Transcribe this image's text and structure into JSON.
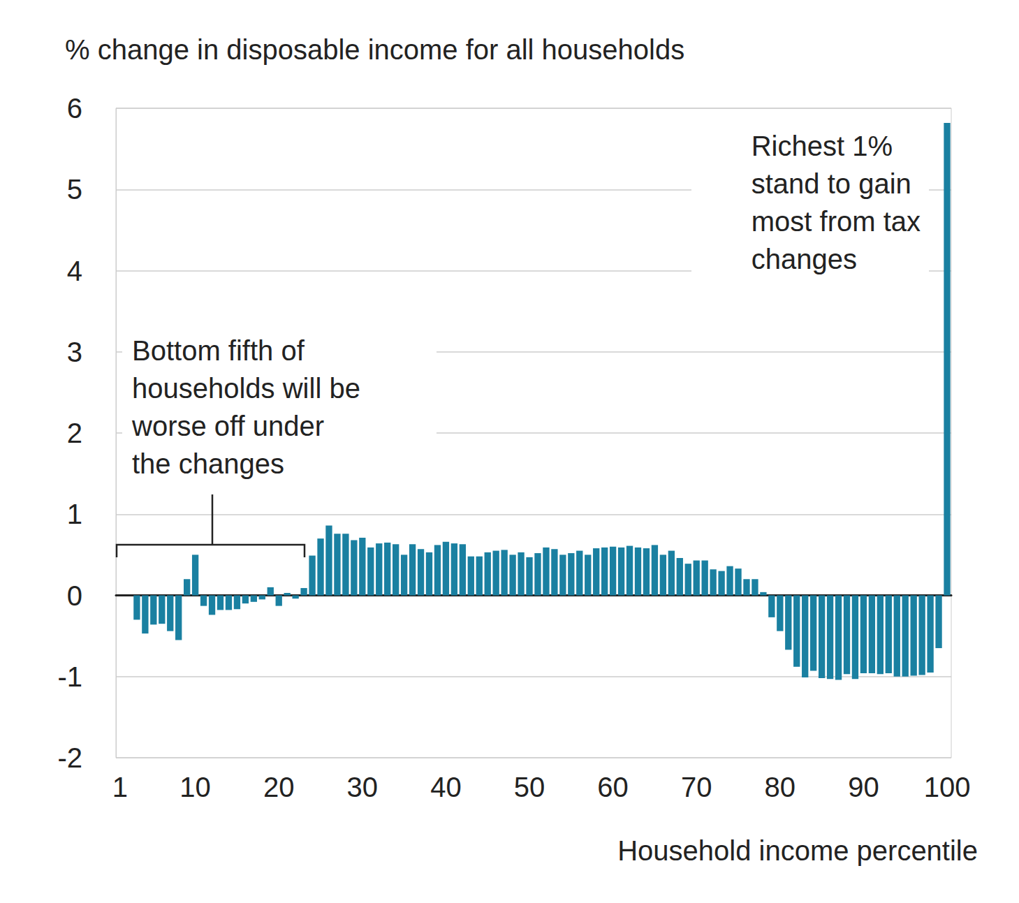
{
  "chart_data": {
    "type": "bar",
    "title": "% change in disposable income for all households",
    "x_label": "Household income percentile",
    "categories": [
      1,
      null,
      null,
      null,
      null,
      null,
      null,
      null,
      null,
      10,
      null,
      null,
      null,
      null,
      null,
      null,
      null,
      null,
      null,
      20,
      null,
      null,
      null,
      null,
      null,
      null,
      null,
      null,
      null,
      30,
      null,
      null,
      null,
      null,
      null,
      null,
      null,
      null,
      null,
      40,
      null,
      null,
      null,
      null,
      null,
      null,
      null,
      null,
      null,
      50,
      null,
      null,
      null,
      null,
      null,
      null,
      null,
      null,
      null,
      60,
      null,
      null,
      null,
      null,
      null,
      null,
      null,
      null,
      null,
      70,
      null,
      null,
      null,
      null,
      null,
      null,
      null,
      null,
      null,
      80,
      null,
      null,
      null,
      null,
      null,
      null,
      null,
      null,
      null,
      90,
      null,
      null,
      null,
      null,
      null,
      null,
      null,
      null,
      null,
      100
    ],
    "values": [
      0,
      0,
      -0.3,
      -0.47,
      -0.36,
      -0.35,
      -0.44,
      -0.55,
      0.2,
      0.5,
      -0.13,
      -0.24,
      -0.18,
      -0.18,
      -0.17,
      -0.1,
      -0.08,
      -0.05,
      0.1,
      -0.13,
      0.03,
      -0.04,
      0.09,
      0.49,
      0.7,
      0.86,
      0.76,
      0.76,
      0.68,
      0.71,
      0.59,
      0.64,
      0.65,
      0.63,
      0.5,
      0.63,
      0.57,
      0.53,
      0.62,
      0.66,
      0.64,
      0.63,
      0.48,
      0.48,
      0.53,
      0.55,
      0.56,
      0.5,
      0.53,
      0.47,
      0.52,
      0.59,
      0.57,
      0.5,
      0.52,
      0.55,
      0.5,
      0.58,
      0.59,
      0.6,
      0.59,
      0.61,
      0.59,
      0.58,
      0.62,
      0.5,
      0.55,
      0.46,
      0.39,
      0.43,
      0.43,
      0.32,
      0.3,
      0.36,
      0.33,
      0.2,
      0.2,
      0.04,
      -0.27,
      -0.44,
      -0.67,
      -0.88,
      -1.01,
      -0.93,
      -1.02,
      -1.03,
      -1.04,
      -0.97,
      -1.03,
      -0.96,
      -0.96,
      -0.97,
      -0.96,
      -1.0,
      -1.0,
      -0.99,
      -0.98,
      -0.95,
      -0.65,
      5.82
    ],
    "color": "#1a80a1",
    "ylim": [
      -2,
      6
    ],
    "yticks": [
      -2,
      -1,
      0,
      1,
      2,
      3,
      4,
      5,
      6
    ],
    "grid": true,
    "annotations": [
      {
        "text": "Richest 1%\nstand to gain\nmost from tax\nchanges"
      },
      {
        "text": "Bottom fifth of\nhouseholds will be\nworse off under\nthe changes"
      }
    ]
  }
}
